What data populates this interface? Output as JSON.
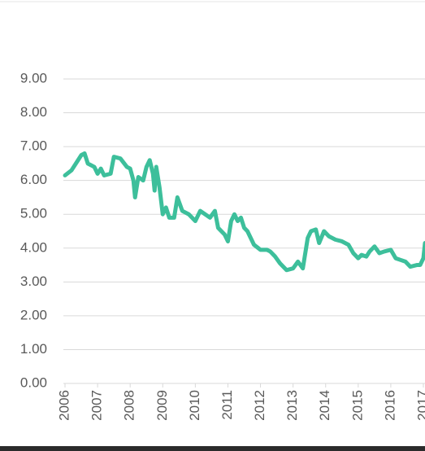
{
  "chart_data": {
    "type": "line",
    "x": [
      2006.0,
      2006.2,
      2006.4,
      2006.5,
      2006.6,
      2006.7,
      2006.9,
      2007.0,
      2007.1,
      2007.2,
      2007.4,
      2007.5,
      2007.7,
      2007.9,
      2008.0,
      2008.1,
      2008.15,
      2008.25,
      2008.4,
      2008.5,
      2008.6,
      2008.7,
      2008.75,
      2008.8,
      2008.9,
      2009.0,
      2009.1,
      2009.2,
      2009.35,
      2009.45,
      2009.6,
      2009.8,
      2010.0,
      2010.15,
      2010.3,
      2010.45,
      2010.6,
      2010.7,
      2010.9,
      2011.0,
      2011.1,
      2011.2,
      2011.3,
      2011.4,
      2011.5,
      2011.6,
      2011.8,
      2012.0,
      2012.2,
      2012.3,
      2012.45,
      2012.6,
      2012.8,
      2013.0,
      2013.15,
      2013.3,
      2013.45,
      2013.55,
      2013.7,
      2013.8,
      2013.95,
      2014.1,
      2014.3,
      2014.5,
      2014.7,
      2014.85,
      2015.0,
      2015.1,
      2015.25,
      2015.35,
      2015.5,
      2015.65,
      2015.8,
      2016.0,
      2016.15,
      2016.3,
      2016.45,
      2016.6,
      2016.8,
      2016.9,
      2017.0,
      2017.05
    ],
    "series": [
      {
        "color": "#3dbf9b",
        "values": [
          6.15,
          6.3,
          6.6,
          6.75,
          6.8,
          6.5,
          6.4,
          6.2,
          6.35,
          6.15,
          6.2,
          6.7,
          6.65,
          6.4,
          6.35,
          6.0,
          5.5,
          6.1,
          6.0,
          6.4,
          6.6,
          6.2,
          5.7,
          6.4,
          5.8,
          5.0,
          5.2,
          4.9,
          4.9,
          5.5,
          5.1,
          5.0,
          4.8,
          5.1,
          5.0,
          4.9,
          5.1,
          4.6,
          4.4,
          4.2,
          4.8,
          5.0,
          4.8,
          4.9,
          4.6,
          4.5,
          4.1,
          3.95,
          3.95,
          3.9,
          3.75,
          3.55,
          3.35,
          3.4,
          3.6,
          3.4,
          4.3,
          4.5,
          4.55,
          4.15,
          4.5,
          4.35,
          4.25,
          4.2,
          4.1,
          3.85,
          3.7,
          3.8,
          3.75,
          3.9,
          4.05,
          3.85,
          3.9,
          3.95,
          3.7,
          3.65,
          3.6,
          3.45,
          3.5,
          3.5,
          3.7,
          4.15
        ]
      }
    ],
    "xlim": [
      2005.95,
      2017.05
    ],
    "xticks": [
      2006,
      2007,
      2008,
      2009,
      2010,
      2011,
      2012,
      2013,
      2014,
      2015,
      2016,
      2017
    ],
    "ylim": [
      0,
      9
    ],
    "yticks": [
      {
        "value": 0,
        "label": "0.00"
      },
      {
        "value": 1,
        "label": "1.00"
      },
      {
        "value": 2,
        "label": "2.00"
      },
      {
        "value": 3,
        "label": "3.00"
      },
      {
        "value": 4,
        "label": "4.00"
      },
      {
        "value": 5,
        "label": "5.00"
      },
      {
        "value": 6,
        "label": "6.00"
      },
      {
        "value": 7,
        "label": "7.00"
      },
      {
        "value": 8,
        "label": "8.00"
      },
      {
        "value": 9,
        "label": "9.00"
      }
    ],
    "grid": true
  }
}
